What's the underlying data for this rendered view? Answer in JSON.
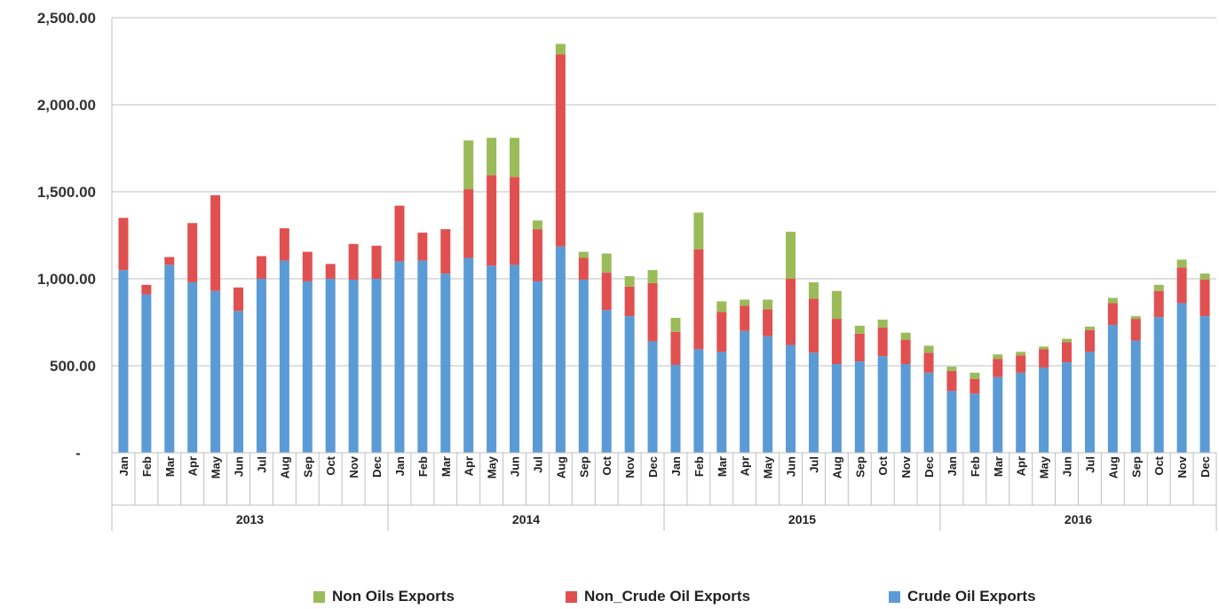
{
  "chart_data": {
    "type": "bar",
    "stacked": true,
    "title": "",
    "xlabel": "",
    "ylabel": "",
    "ylim": [
      0,
      2500
    ],
    "y_ticks": [
      {
        "value": 0,
        "label": "-"
      },
      {
        "value": 500,
        "label": "500.00"
      },
      {
        "value": 1000,
        "label": "1,000.00"
      },
      {
        "value": 1500,
        "label": "1,500.00"
      },
      {
        "value": 2000,
        "label": "2,000.00"
      },
      {
        "value": 2500,
        "label": "2,500.00"
      }
    ],
    "grid": true,
    "legend_position": "bottom",
    "years": [
      "2013",
      "2014",
      "2015",
      "2016"
    ],
    "categories": [
      "Jan",
      "Feb",
      "Mar",
      "Apr",
      "May",
      "Jun",
      "Jul",
      "Aug",
      "Sep",
      "Oct",
      "Nov",
      "Dec",
      "Jan",
      "Feb",
      "Mar",
      "Apr",
      "May",
      "Jun",
      "Jul",
      "Aug",
      "Sep",
      "Oct",
      "Nov",
      "Dec",
      "Jan",
      "Feb",
      "Mar",
      "Apr",
      "May",
      "Jun",
      "Jul",
      "Aug",
      "Sep",
      "Oct",
      "Nov",
      "Dec",
      "Jan",
      "Feb",
      "Mar",
      "Apr",
      "May",
      "Jun",
      "Jul",
      "Aug",
      "Sep",
      "Oct",
      "Nov",
      "Dec"
    ],
    "series": [
      {
        "name": "Crude Oil Exports",
        "color": "#5b9bd5",
        "values": [
          1050,
          910,
          1080,
          980,
          930,
          815,
          1000,
          1105,
          985,
          1000,
          995,
          1000,
          1100,
          1105,
          1030,
          1120,
          1075,
          1080,
          985,
          1185,
          995,
          820,
          785,
          640,
          505,
          595,
          580,
          700,
          670,
          620,
          575,
          510,
          525,
          555,
          510,
          460,
          355,
          340,
          435,
          460,
          490,
          520,
          580,
          735,
          645,
          780,
          860,
          785
        ]
      },
      {
        "name": "Non_Crude Oil Exports",
        "color": "#e05050",
        "values": [
          300,
          55,
          45,
          340,
          550,
          135,
          130,
          185,
          170,
          85,
          205,
          190,
          320,
          160,
          255,
          395,
          520,
          505,
          300,
          1105,
          125,
          215,
          170,
          335,
          190,
          575,
          230,
          145,
          155,
          380,
          310,
          260,
          160,
          165,
          140,
          115,
          115,
          85,
          105,
          100,
          105,
          115,
          125,
          125,
          125,
          150,
          205,
          210
        ]
      },
      {
        "name": "Non Oils Exports",
        "color": "#9bbb59",
        "values": [
          0,
          0,
          0,
          0,
          0,
          0,
          0,
          0,
          0,
          0,
          0,
          0,
          0,
          0,
          0,
          280,
          215,
          225,
          50,
          60,
          35,
          110,
          60,
          75,
          80,
          210,
          60,
          35,
          55,
          270,
          95,
          160,
          45,
          45,
          40,
          40,
          25,
          35,
          25,
          20,
          15,
          20,
          20,
          30,
          15,
          35,
          45,
          35
        ]
      }
    ]
  },
  "legend": [
    {
      "key": "non_oils",
      "label": "Non Oils Exports",
      "color": "#9bbb59"
    },
    {
      "key": "non_crude",
      "label": "Non_Crude Oil Exports",
      "color": "#e05050"
    },
    {
      "key": "crude",
      "label": "Crude Oil Exports",
      "color": "#5b9bd5"
    }
  ]
}
